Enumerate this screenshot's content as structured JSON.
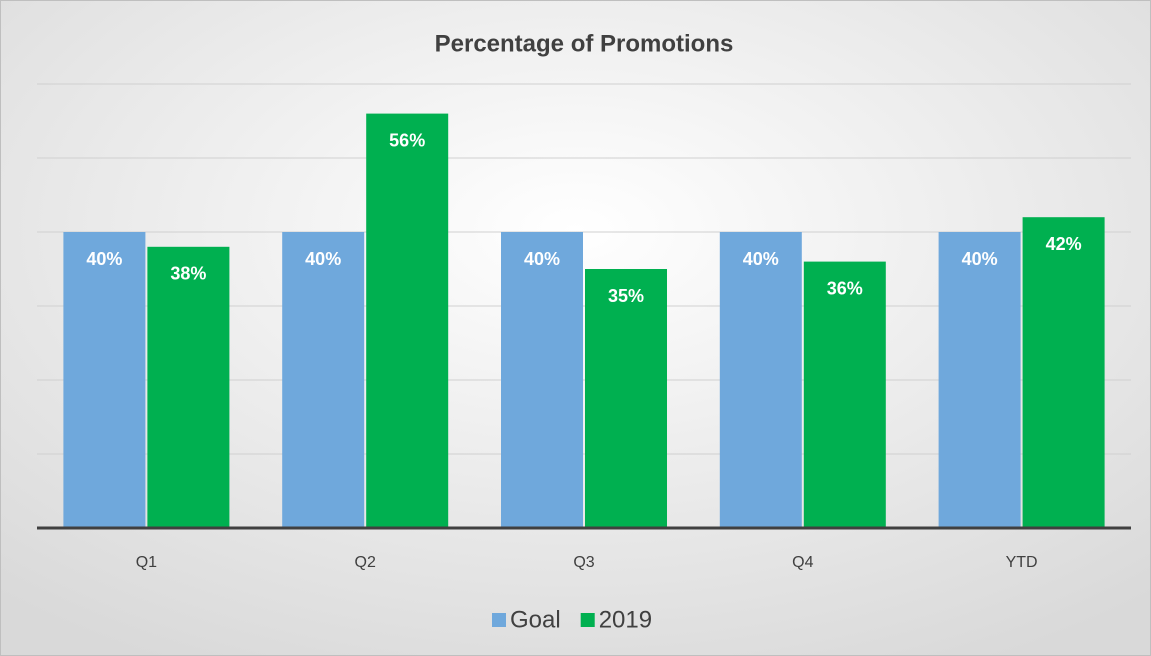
{
  "chart_data": {
    "type": "bar",
    "title": "Percentage of Promotions",
    "categories": [
      "Q1",
      "Q2",
      "Q3",
      "Q4",
      "YTD"
    ],
    "series": [
      {
        "name": "Goal",
        "color": "#6fa8dc",
        "values": [
          40,
          40,
          40,
          40,
          40
        ],
        "value_labels": [
          "40%",
          "40%",
          "40%",
          "40%",
          "40%"
        ]
      },
      {
        "name": "2019",
        "color": "#00b050",
        "values": [
          38,
          56,
          35,
          36,
          42
        ],
        "value_labels": [
          "38%",
          "56%",
          "35%",
          "36%",
          "42%"
        ]
      }
    ],
    "ylim": [
      0,
      60
    ],
    "yticks": [
      0,
      10,
      20,
      30,
      40,
      50,
      60
    ],
    "grid": true,
    "legend": "bottom"
  }
}
